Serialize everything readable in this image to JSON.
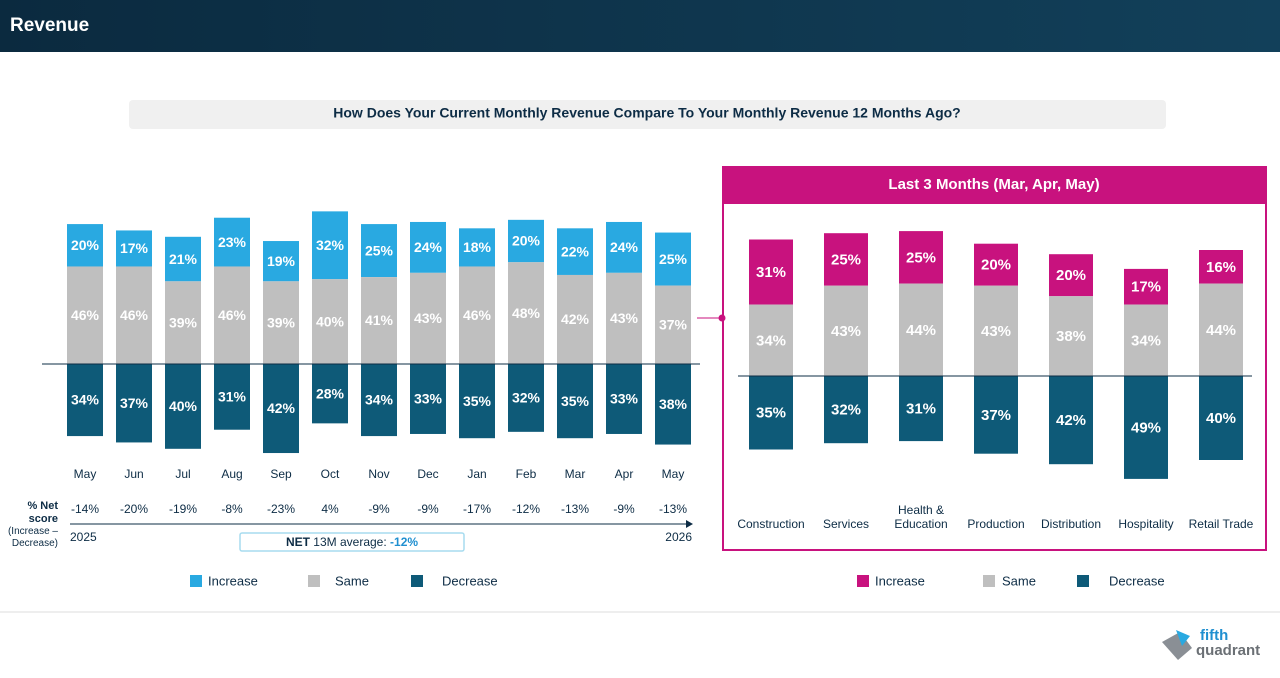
{
  "header": {
    "title": "Revenue"
  },
  "question": "How Does Your Current Monthly Revenue Compare To Your Monthly Revenue 12 Months Ago?",
  "chart_data": [
    {
      "type": "diverging-bar",
      "categories": [
        "May",
        "Jun",
        "Jul",
        "Aug",
        "Sep",
        "Oct",
        "Nov",
        "Dec",
        "Jan",
        "Feb",
        "Mar",
        "Apr",
        "May"
      ],
      "series": [
        {
          "name": "Increase",
          "color": "#29a9e1",
          "values": [
            20,
            17,
            21,
            23,
            19,
            32,
            25,
            24,
            18,
            20,
            22,
            24,
            25
          ],
          "value_labels": [
            "20%",
            "17%",
            "21%",
            "23%",
            "19%",
            "32%",
            "25%",
            "24%",
            "18%",
            "20%",
            "22%",
            "24%",
            "25%"
          ]
        },
        {
          "name": "Same",
          "color": "#bfbfbf",
          "values": [
            46,
            46,
            39,
            46,
            39,
            40,
            41,
            43,
            46,
            48,
            42,
            43,
            37
          ],
          "value_labels": [
            "46%",
            "46%",
            "39%",
            "46%",
            "39%",
            "40%",
            "41%",
            "43%",
            "46%",
            "48%",
            "42%",
            "43%",
            "37%"
          ]
        },
        {
          "name": "Decrease",
          "color": "#0e5a78",
          "values": [
            34,
            37,
            40,
            31,
            42,
            28,
            34,
            33,
            35,
            32,
            35,
            33,
            38
          ],
          "value_labels": [
            "34%",
            "37%",
            "40%",
            "31%",
            "42%",
            "28%",
            "34%",
            "33%",
            "35%",
            "32%",
            "35%",
            "33%",
            "38%"
          ]
        }
      ],
      "net_score": {
        "label": "% Net score",
        "sublabel": "(Increase – Decrease)",
        "values": [
          "-14%",
          "-20%",
          "-19%",
          "-8%",
          "-23%",
          "4%",
          "-9%",
          "-9%",
          "-17%",
          "-12%",
          "-13%",
          "-9%",
          "-13%"
        ]
      },
      "x_start_label": "2025",
      "x_end_label": "2026",
      "net_average": {
        "label": "NET",
        "text": "13M average:",
        "value": "-12%"
      }
    },
    {
      "type": "diverging-bar",
      "title": "Last 3 Months (Mar, Apr, May)",
      "categories": [
        "Construction",
        "Services",
        "Health & Education",
        "Production",
        "Distribution",
        "Hospitality",
        "Retail Trade"
      ],
      "series": [
        {
          "name": "Increase",
          "color": "#c8127e",
          "values": [
            31,
            25,
            25,
            20,
            20,
            17,
            16
          ],
          "value_labels": [
            "31%",
            "25%",
            "25%",
            "20%",
            "20%",
            "17%",
            "16%"
          ]
        },
        {
          "name": "Same",
          "color": "#bfbfbf",
          "values": [
            34,
            43,
            44,
            43,
            38,
            34,
            44
          ],
          "value_labels": [
            "34%",
            "43%",
            "44%",
            "43%",
            "38%",
            "34%",
            "44%"
          ]
        },
        {
          "name": "Decrease",
          "color": "#0e5a78",
          "values": [
            35,
            32,
            31,
            37,
            42,
            49,
            40
          ],
          "value_labels": [
            "35%",
            "32%",
            "31%",
            "37%",
            "42%",
            "49%",
            "40%"
          ]
        }
      ]
    }
  ],
  "logo": {
    "line1": "fifth",
    "line2": "quadrant"
  }
}
